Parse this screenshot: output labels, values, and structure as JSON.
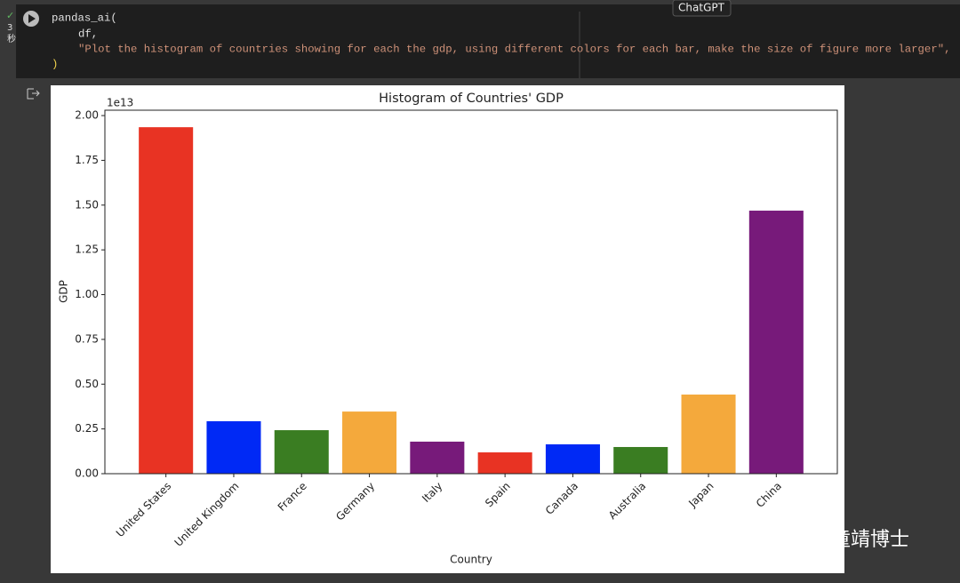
{
  "tooltip": "ChatGPT",
  "exec_time": "3",
  "exec_unit": "秒",
  "code_lines": [
    "pandas_ai(",
    "df,",
    "\"Plot the histogram of countries showing for each the gdp, using different colors for each bar, make the size of figure more larger\",",
    ")"
  ],
  "watermark": "门童靖博士",
  "chart_data": {
    "type": "bar",
    "title": "Histogram of Countries' GDP",
    "x_label": "Country",
    "y_label": "GDP",
    "y_offset_label": "1e13",
    "categories": [
      "United States",
      "United Kingdom",
      "France",
      "Germany",
      "Italy",
      "Spain",
      "Canada",
      "Australia",
      "Japan",
      "China"
    ],
    "values": [
      1.935,
      0.293,
      0.243,
      0.347,
      0.179,
      0.119,
      0.164,
      0.149,
      0.442,
      1.469
    ],
    "colors": [
      "#e83323",
      "#0029f5",
      "#3a7d22",
      "#f4a93c",
      "#771a7a",
      "#e83323",
      "#0029f5",
      "#3a7d22",
      "#f4a93c",
      "#771a7a"
    ],
    "ylim": [
      0,
      2.03
    ],
    "yticks": [
      {
        "value": 0,
        "label": "0.00"
      },
      {
        "value": 0.25,
        "label": "0.25"
      },
      {
        "value": 0.5,
        "label": "0.50"
      },
      {
        "value": 0.75,
        "label": "0.75"
      },
      {
        "value": 1,
        "label": "1.00"
      },
      {
        "value": 1.25,
        "label": "1.25"
      },
      {
        "value": 1.5,
        "label": "1.50"
      },
      {
        "value": 1.75,
        "label": "1.75"
      },
      {
        "value": 2,
        "label": "2.00"
      }
    ],
    "grid": false
  }
}
